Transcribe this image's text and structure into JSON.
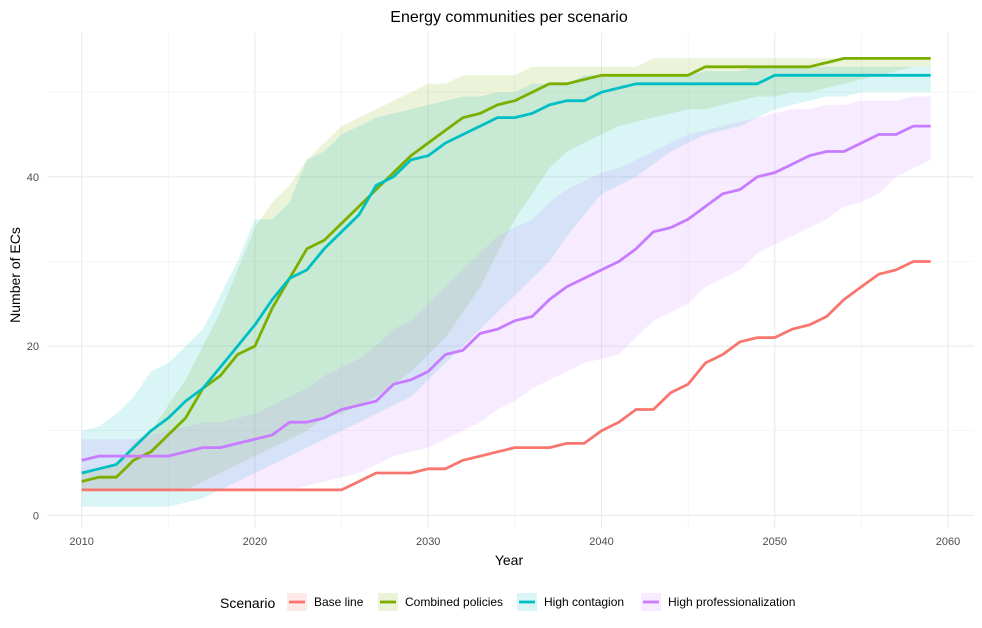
{
  "chart_data": {
    "type": "line",
    "title": "Energy communities per scenario",
    "xlabel": "Year",
    "ylabel": "Number of ECs",
    "xlim": [
      2008,
      2061.5
    ],
    "ylim": [
      -1.5,
      57
    ],
    "x_ticks": [
      2010,
      2020,
      2030,
      2040,
      2050,
      2060
    ],
    "y_ticks": [
      0,
      20,
      40
    ],
    "grid": true,
    "legend_position": "bottom",
    "legend_title": "Scenario",
    "x": [
      2010,
      2011,
      2012,
      2013,
      2014,
      2015,
      2016,
      2017,
      2018,
      2019,
      2020,
      2021,
      2022,
      2023,
      2024,
      2025,
      2026,
      2027,
      2028,
      2029,
      2030,
      2031,
      2032,
      2033,
      2034,
      2035,
      2036,
      2037,
      2038,
      2039,
      2040,
      2041,
      2042,
      2043,
      2044,
      2045,
      2046,
      2047,
      2048,
      2049,
      2050,
      2051,
      2052,
      2053,
      2054,
      2055,
      2056,
      2057,
      2058,
      2059
    ],
    "series": [
      {
        "name": "Base line",
        "color": "#F8766D",
        "values": [
          3,
          3,
          3,
          3,
          3,
          3,
          3,
          3,
          3,
          3,
          3,
          3,
          3,
          3,
          3,
          3,
          4,
          5,
          5,
          5,
          5.5,
          5.5,
          6.5,
          7,
          7.5,
          8,
          8,
          8,
          8.5,
          8.5,
          10,
          11,
          12.5,
          12.5,
          14.5,
          15.5,
          18,
          19,
          20.5,
          21,
          21,
          22,
          22.5,
          23.5,
          25.5,
          27,
          28.5,
          29,
          30,
          30
        ],
        "lower": [
          3,
          3,
          3,
          3,
          3,
          3,
          3,
          3,
          3,
          3,
          3,
          3,
          3,
          3,
          3,
          3,
          3,
          3,
          3,
          3,
          3,
          3,
          3,
          3,
          3,
          3,
          3,
          3,
          3,
          3,
          3,
          3,
          3,
          3,
          3,
          3,
          3,
          3,
          3,
          3,
          3,
          3,
          3,
          3,
          3,
          3,
          3,
          3,
          3,
          3
        ],
        "upper": [
          3,
          3,
          3,
          3,
          3,
          3,
          3,
          3,
          3,
          3,
          3,
          3,
          3,
          3,
          3,
          3,
          3,
          3,
          3,
          3,
          3,
          3,
          3,
          3,
          3,
          3,
          3,
          3,
          3,
          3,
          3,
          3,
          3,
          3,
          3,
          3,
          3,
          3,
          3,
          3,
          3,
          3,
          3,
          3,
          3,
          3,
          3,
          3,
          3,
          3
        ]
      },
      {
        "name": "Combined policies",
        "color": "#7CAE00",
        "values": [
          4,
          4.5,
          4.5,
          6.5,
          7.5,
          9.5,
          11.5,
          15,
          16.5,
          19,
          20,
          24.5,
          28,
          31.5,
          32.5,
          34.5,
          36.5,
          38.5,
          40.5,
          42.5,
          44,
          45.5,
          47,
          47.5,
          48.5,
          49,
          50,
          51,
          51,
          51.5,
          52,
          52,
          52,
          52,
          52,
          52,
          53,
          53,
          53,
          53,
          53,
          53,
          53,
          53.5,
          54,
          54,
          54,
          54,
          54,
          54
        ],
        "lower": [
          3,
          3,
          3,
          3,
          3,
          3,
          3,
          4,
          5,
          6,
          7,
          8,
          9,
          10,
          11.5,
          12,
          13,
          14,
          15.5,
          17,
          19,
          21,
          24,
          27,
          31,
          35,
          38,
          41,
          43,
          44,
          45,
          46,
          46.5,
          47,
          47.5,
          48,
          48,
          48.5,
          49,
          49.5,
          49.5,
          50,
          50,
          50.5,
          51,
          51.5,
          52,
          52.5,
          53,
          53
        ],
        "upper": [
          5,
          5.5,
          6,
          8.5,
          10,
          13,
          16,
          20,
          24,
          29,
          34,
          37,
          39,
          42,
          44,
          46,
          47,
          48,
          49,
          50,
          51,
          51,
          52,
          52,
          52,
          52,
          53,
          53,
          53,
          53,
          53,
          53,
          53,
          54,
          54,
          54,
          54,
          54,
          54,
          54,
          54,
          54,
          54,
          54,
          54,
          54,
          54,
          54,
          54,
          54
        ]
      },
      {
        "name": "High contagion",
        "color": "#00BFC4",
        "values": [
          5,
          5.5,
          6,
          8,
          10,
          11.5,
          13.5,
          15,
          17.5,
          20,
          22.5,
          25.5,
          28,
          29,
          31.5,
          33.5,
          35.5,
          39,
          40,
          42,
          42.5,
          44,
          45,
          46,
          47,
          47,
          47.5,
          48.5,
          49,
          49,
          50,
          50.5,
          51,
          51,
          51,
          51,
          51,
          51,
          51,
          51,
          52,
          52,
          52,
          52,
          52,
          52,
          52,
          52,
          52,
          52
        ],
        "lower": [
          1,
          1,
          1,
          1,
          1,
          1,
          1.5,
          2,
          3,
          4,
          5,
          6,
          7,
          8,
          9,
          10,
          11,
          12,
          13,
          14,
          16,
          18,
          20,
          22,
          24,
          26,
          28,
          30,
          33,
          35.5,
          38,
          39,
          40,
          41.5,
          43,
          44,
          45,
          45.5,
          46,
          47,
          48,
          48.5,
          49,
          49.5,
          49.5,
          50,
          50,
          50,
          50,
          50
        ],
        "upper": [
          10,
          10.5,
          12,
          14,
          17,
          18,
          20,
          22,
          26,
          30,
          35,
          35,
          37,
          42,
          43,
          45,
          46,
          47,
          47.5,
          48,
          48.5,
          49,
          49.5,
          49.5,
          50,
          50,
          51,
          51,
          51,
          52,
          52,
          52,
          52,
          52,
          52,
          52,
          52.5,
          52.5,
          52.5,
          53,
          53,
          53,
          53,
          53,
          53,
          53,
          53,
          53,
          53,
          53
        ]
      },
      {
        "name": "High professionalization",
        "color": "#C77CFF",
        "values": [
          6.5,
          7,
          7,
          7,
          7,
          7,
          7.5,
          8,
          8,
          8.5,
          9,
          9.5,
          11,
          11,
          11.5,
          12.5,
          13,
          13.5,
          15.5,
          16,
          17,
          19,
          19.5,
          21.5,
          22,
          23,
          23.5,
          25.5,
          27,
          28,
          29,
          30,
          31.5,
          33.5,
          34,
          35,
          36.5,
          38,
          38.5,
          40,
          40.5,
          41.5,
          42.5,
          43,
          43,
          44,
          45,
          45,
          46,
          46
        ],
        "lower": [
          3,
          3,
          3,
          3,
          3,
          3,
          3,
          3,
          3,
          3,
          3,
          3,
          3,
          3.5,
          4,
          4.5,
          5,
          6,
          7,
          7.5,
          8,
          9,
          10,
          11,
          12.5,
          13.5,
          15,
          16,
          17,
          18,
          18.5,
          19,
          21,
          23,
          24,
          25,
          27,
          28,
          29,
          31,
          32,
          33,
          34,
          35,
          36.5,
          37,
          38,
          40,
          41,
          42
        ],
        "upper": [
          9,
          9,
          9,
          9,
          9.5,
          10,
          10.5,
          11,
          11,
          11.5,
          12,
          13,
          14,
          15,
          16.5,
          17.5,
          18.5,
          20,
          22,
          23,
          25,
          27,
          29,
          31,
          33,
          34,
          35,
          37,
          38.5,
          39.5,
          40.5,
          41,
          42,
          43,
          44,
          45,
          45.5,
          46,
          46.5,
          47,
          47.5,
          48,
          48,
          48.5,
          48.5,
          49,
          49,
          49,
          49.5,
          49.5
        ]
      }
    ]
  }
}
